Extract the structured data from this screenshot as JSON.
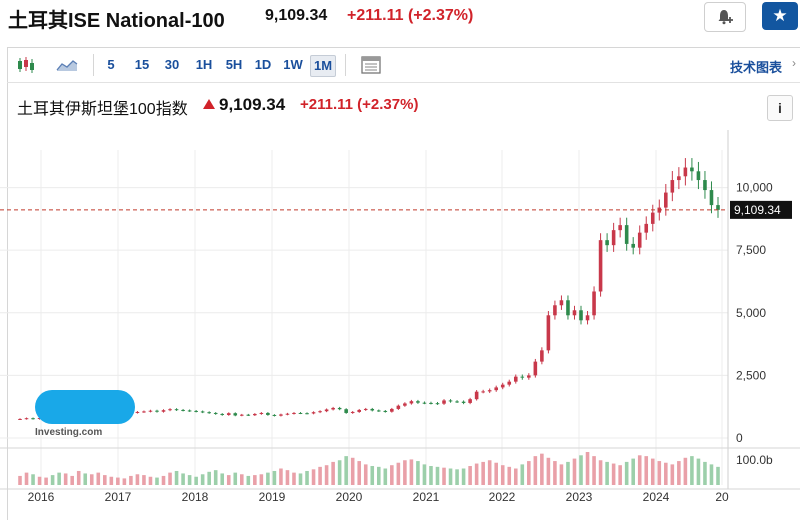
{
  "header": {
    "title": "土耳其ISE National-100",
    "price": "9,109.34",
    "change": "+211.11 (+2.37%)"
  },
  "toolbar": {
    "intervals": [
      "5",
      "15",
      "30",
      "1H",
      "5H",
      "1D",
      "1W",
      "1M"
    ],
    "active": "1M",
    "tech_label": "技术图表"
  },
  "legend": {
    "name": "土耳其伊斯坦堡100指数",
    "price": "9,109.34",
    "change": "+211.11 (+2.37%)"
  },
  "logo": {
    "text": "Investing.com"
  },
  "colors": {
    "up": "#c8384a",
    "down": "#2e8a4c",
    "accent": "#1a4f9c",
    "dashed": "#c0392b"
  },
  "chart_data": {
    "type": "candlestick",
    "x_axis_labels": [
      "2016",
      "2017",
      "2018",
      "2019",
      "2020",
      "2021",
      "2022",
      "2023",
      "2024",
      "20"
    ],
    "y_ticks": [
      "0",
      "2,500",
      "5,000",
      "7,500",
      "10,000"
    ],
    "ylim": [
      0,
      12000
    ],
    "current_value_label": "9,109.34",
    "current_value": 9109.34,
    "volume_axis_label": "100.0b",
    "grid": true,
    "series_monthly_close": [
      760,
      790,
      760,
      800,
      830,
      820,
      780,
      800,
      820,
      850,
      760,
      780,
      860,
      900,
      940,
      980,
      1000,
      1010,
      1040,
      1060,
      1090,
      1050,
      1110,
      1150,
      1120,
      1100,
      1080,
      1060,
      1030,
      1000,
      960,
      920,
      990,
      900,
      930,
      910,
      960,
      1000,
      920,
      890,
      940,
      970,
      1000,
      990,
      980,
      1030,
      1070,
      1140,
      1200,
      1150,
      1000,
      1040,
      1120,
      1160,
      1100,
      1080,
      1050,
      1160,
      1290,
      1380,
      1470,
      1410,
      1400,
      1390,
      1370,
      1500,
      1460,
      1450,
      1400,
      1550,
      1850,
      1860,
      1910,
      2020,
      2130,
      2250,
      2450,
      2410,
      2500,
      3050,
      3500,
      4900,
      5300,
      5500,
      4900,
      5100,
      4700,
      4900,
      5850,
      7900,
      7700,
      8300,
      8500,
      7750,
      7600,
      8200,
      8550,
      9000,
      9200,
      9800,
      10300,
      10450,
      10800,
      10650,
      10300,
      9900,
      9300,
      9109
    ],
    "series_monthly_volume": [
      22,
      30,
      26,
      20,
      18,
      24,
      30,
      28,
      22,
      34,
      28,
      26,
      30,
      24,
      20,
      18,
      16,
      22,
      26,
      24,
      20,
      18,
      22,
      30,
      34,
      28,
      24,
      20,
      26,
      32,
      36,
      28,
      24,
      30,
      26,
      22,
      24,
      26,
      30,
      34,
      40,
      36,
      30,
      28,
      34,
      38,
      44,
      48,
      56,
      60,
      70,
      66,
      58,
      50,
      46,
      44,
      40,
      48,
      54,
      60,
      62,
      58,
      50,
      46,
      44,
      42,
      40,
      38,
      40,
      46,
      52,
      56,
      60,
      54,
      48,
      44,
      40,
      50,
      58,
      70,
      76,
      66,
      58,
      50,
      56,
      64,
      72,
      80,
      70,
      60,
      56,
      52,
      48,
      56,
      64,
      72,
      70,
      64,
      58,
      54,
      50,
      58,
      66,
      70,
      64,
      56,
      50,
      44
    ]
  }
}
